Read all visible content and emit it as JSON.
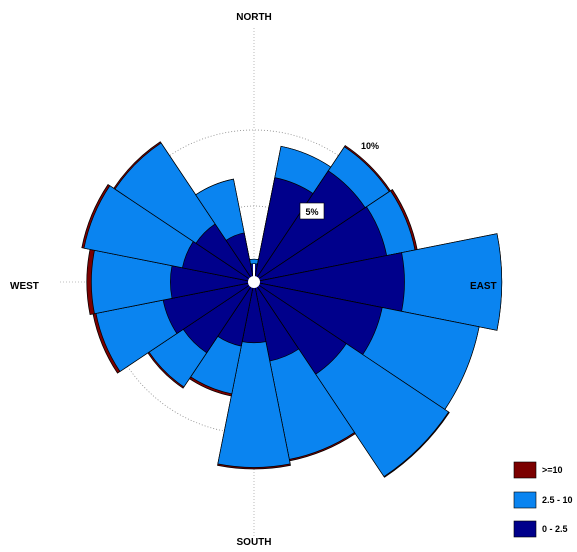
{
  "chart_data": {
    "type": "windrose",
    "directions": [
      "NORTH",
      "EAST",
      "SOUTH",
      "WEST"
    ],
    "ring_labels": [
      "5%",
      "10%"
    ],
    "rings": [
      5,
      10
    ],
    "sector_count": 16,
    "sectors": [
      "N",
      "NNE",
      "NE",
      "ENE",
      "E",
      "ESE",
      "SE",
      "SSE",
      "S",
      "SSW",
      "SW",
      "WSW",
      "W",
      "WNW",
      "NW",
      "NNW"
    ],
    "series": [
      {
        "name": "0 - 2.5",
        "color": "#00008b",
        "values": [
          1.2,
          7.0,
          8.8,
          8.9,
          9.9,
          8.6,
          7.3,
          5.3,
          4.0,
          4.3,
          5.6,
          6.1,
          5.5,
          4.8,
          4.6,
          3.3
        ]
      },
      {
        "name": "2.5 - 10",
        "color": "#0a84f0",
        "values": [
          0.3,
          2.1,
          1.9,
          1.9,
          6.4,
          6.5,
          8.1,
          6.6,
          8.2,
          3.2,
          2.7,
          4.5,
          5.2,
          6.6,
          6.4,
          3.6
        ]
      },
      {
        "name": ">=10",
        "color": "#7b0000",
        "values": [
          0,
          0,
          0.1,
          0.15,
          0,
          0,
          0.05,
          0.1,
          0.1,
          0.15,
          0.1,
          0.2,
          0.3,
          0.15,
          0.1,
          0
        ]
      }
    ],
    "legend": [
      {
        "label": ">=10",
        "color": "#7b0000"
      },
      {
        "label": "2.5 - 10",
        "color": "#0a84f0"
      },
      {
        "label": "0 - 2.5",
        "color": "#00008b"
      }
    ],
    "legend_position": "bottom-right"
  }
}
